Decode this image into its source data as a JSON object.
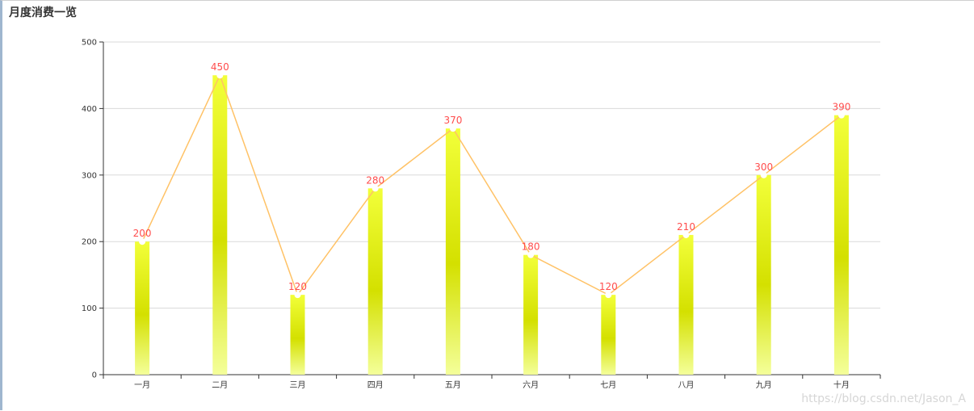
{
  "chart_data": {
    "type": "bar",
    "title": "月度消费一览",
    "categories": [
      "一月",
      "二月",
      "三月",
      "四月",
      "五月",
      "六月",
      "七月",
      "八月",
      "九月",
      "十月"
    ],
    "values": [
      200,
      450,
      120,
      280,
      370,
      180,
      120,
      210,
      300,
      390
    ],
    "overlay_line": true,
    "ylim": [
      0,
      500
    ],
    "yticks": [
      0,
      100,
      200,
      300,
      400,
      500
    ],
    "grid": true,
    "colors": {
      "bar_light": "#f4ff9a",
      "bar_mid": "#d4e000",
      "bar_top": "#f2ff3a",
      "line": "#ffc266",
      "label": "#ff4d4d",
      "grid": "#d9d9d9",
      "axis": "#333333"
    }
  },
  "watermark": "https://blog.csdn.net/Jason_A"
}
